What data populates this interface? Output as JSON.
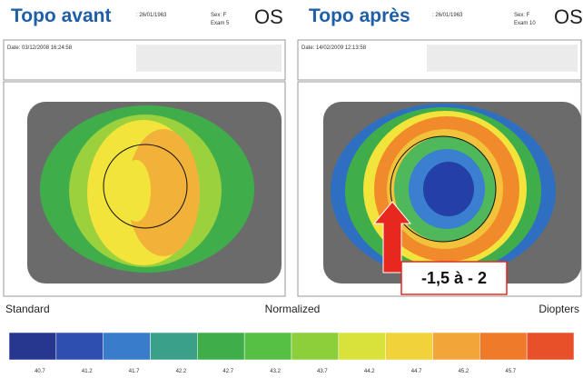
{
  "panels": [
    {
      "title": "Topo avant",
      "eye": "OS",
      "birth": ": 26/01/1963",
      "sex": "Sex: F",
      "exam": "Exam 5",
      "date": "Date: 03/12/2008 16:24:58"
    },
    {
      "title": "Topo après",
      "eye": "OS",
      "birth": ": 26/01/1963",
      "sex": "Sex: F",
      "exam": "Exam 10",
      "date": "Date: 14/02/2009 12:13:58"
    }
  ],
  "annotation": "-1,5 à - 2",
  "scale": {
    "left": "Standard",
    "center": "Normalized",
    "right": "Diopters",
    "labels": [
      "40.7",
      "41.2",
      "41.7",
      "42.2",
      "42.7",
      "43.2",
      "43.7",
      "44.2",
      "44.7",
      "45.2",
      "45.7"
    ]
  }
}
